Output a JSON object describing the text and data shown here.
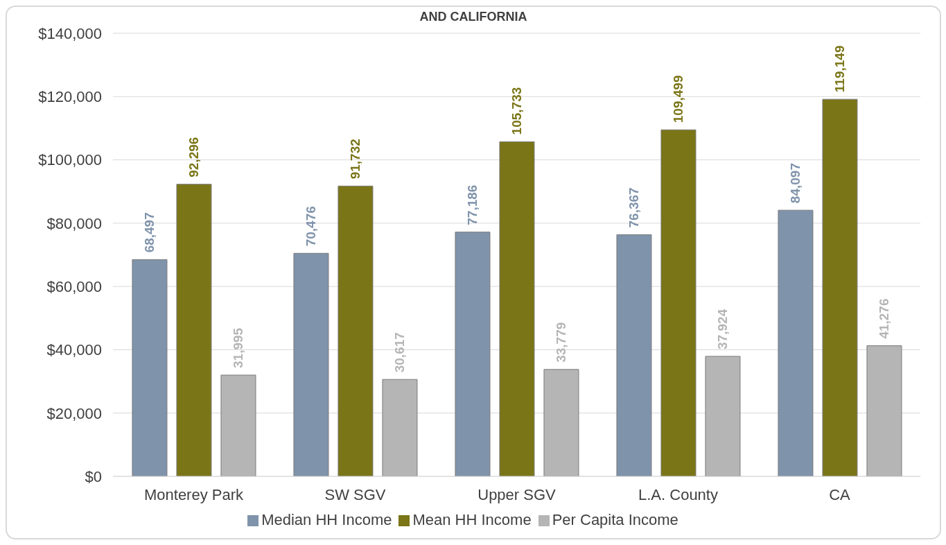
{
  "chart_data": {
    "type": "bar",
    "title": "AND CALIFORNIA",
    "categories": [
      "Monterey Park",
      "SW SGV",
      "Upper SGV",
      "L.A. County",
      "CA"
    ],
    "series": [
      {
        "name": "Median HH Income",
        "color": "#7f93ab",
        "values": [
          68497,
          70476,
          77186,
          76367,
          84097
        ],
        "value_labels": [
          "68,497",
          "70,476",
          "77,186",
          "76,367",
          "84,097"
        ]
      },
      {
        "name": "Mean HH Income",
        "color": "#7a7517",
        "values": [
          92296,
          91732,
          105733,
          109499,
          119149
        ],
        "value_labels": [
          "92,296",
          "91,732",
          "105,733",
          "109,499",
          "119,149"
        ]
      },
      {
        "name": "Per Capita Income",
        "color": "#b5b5b5",
        "values": [
          31995,
          30617,
          33779,
          37924,
          41276
        ],
        "value_labels": [
          "31,995",
          "30,617",
          "33,779",
          "37,924",
          "41,276"
        ]
      }
    ],
    "ylim": [
      0,
      140000
    ],
    "yticks": [
      {
        "value": 0,
        "label": "$0"
      },
      {
        "value": 20000,
        "label": "$20,000"
      },
      {
        "value": 40000,
        "label": "$40,000"
      },
      {
        "value": 60000,
        "label": "$60,000"
      },
      {
        "value": 80000,
        "label": "$80,000"
      },
      {
        "value": 100000,
        "label": "$100,000"
      },
      {
        "value": 120000,
        "label": "$120,000"
      },
      {
        "value": 140000,
        "label": "$140,000"
      }
    ],
    "grid": "y",
    "legend": "bottom"
  }
}
